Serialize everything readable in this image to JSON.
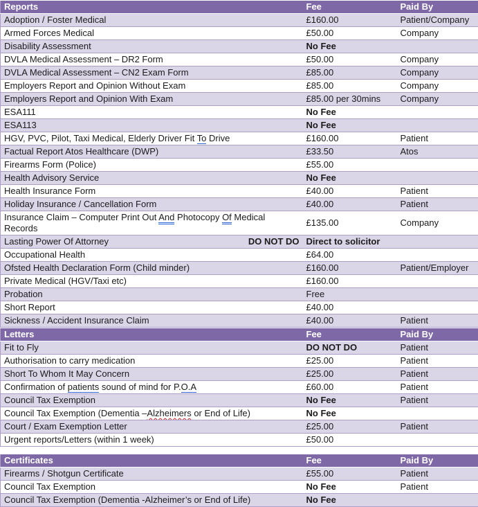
{
  "colors": {
    "header_bg": "#7e68a6",
    "header_text": "#ffffff",
    "band_row_bg": "#dbd5e8",
    "plain_row_bg": "#ffffff",
    "row_border": "#ac9dc9",
    "body_text": "#1b1b1b",
    "grammar_underline": "#2e62d9",
    "spelling_underline": "#cc2222"
  },
  "tables": [
    {
      "id": "reports",
      "title": "Reports",
      "fee_header": "Fee",
      "paid_by_header": "Paid By",
      "rows": [
        {
          "service": "Adoption / Foster Medical",
          "fee": "£160.00",
          "paid_by": "Patient/Company"
        },
        {
          "service": "Armed Forces Medical",
          "fee": "£50.00",
          "paid_by": "Company"
        },
        {
          "service": "Disability Assessment",
          "fee": "No Fee",
          "fee_bold": true,
          "paid_by": ""
        },
        {
          "service": "DVLA Medical Assessment – DR2 Form",
          "fee": "£50.00",
          "paid_by": "Company"
        },
        {
          "service": "DVLA Medical Assessment – CN2 Exam Form",
          "fee": "£85.00",
          "paid_by": "Company"
        },
        {
          "service": "Employers Report and Opinion Without Exam",
          "fee": "£85.00",
          "paid_by": "Company"
        },
        {
          "service": "Employers Report and Opinion With Exam",
          "fee": "£85.00 per 30mins",
          "paid_by": "Company"
        },
        {
          "service": "ESA111",
          "fee": "No Fee",
          "fee_bold": true,
          "paid_by": ""
        },
        {
          "service": "ESA113",
          "fee": "No Fee",
          "fee_bold": true,
          "paid_by": ""
        },
        {
          "service": [
            {
              "text": "HGV, PVC, Pilot, Taxi Medical, Elderly Driver Fit "
            },
            {
              "text": "To",
              "mark": "grammar"
            },
            {
              "text": " Drive"
            }
          ],
          "fee": "£160.00",
          "paid_by": "Patient"
        },
        {
          "service": "Factual Report Atos Healthcare (DWP)",
          "fee": "£33.50",
          "paid_by": "Atos"
        },
        {
          "service": "Firearms Form (Police)",
          "fee": "£55.00",
          "paid_by": ""
        },
        {
          "service": "Health Advisory Service",
          "fee": "No Fee",
          "fee_bold": true,
          "paid_by": ""
        },
        {
          "service": "Health Insurance Form",
          "fee": "£40.00",
          "paid_by": "Patient"
        },
        {
          "service": "Holiday Insurance / Cancellation Form",
          "fee": "£40.00",
          "paid_by": "Patient"
        },
        {
          "service": [
            {
              "text": "Insurance Claim – Computer Print Out "
            },
            {
              "text": "And",
              "mark": "grammar"
            },
            {
              "text": " Photocopy "
            },
            {
              "text": "Of",
              "mark": "grammar"
            },
            {
              "text": " Medical Records"
            }
          ],
          "fee": "£135.00",
          "paid_by": "Company"
        },
        {
          "service": "Lasting Power Of Attorney",
          "note": "DO NOT DO",
          "fee": "Direct to solicitor",
          "fee_bold": true,
          "paid_by": ""
        },
        {
          "service": "Occupational Health",
          "fee": "£64.00",
          "paid_by": ""
        },
        {
          "service": "Ofsted Health Declaration Form (Child minder)",
          "fee": "£160.00",
          "paid_by": "Patient/Employer"
        },
        {
          "service": "Private Medical (HGV/Taxi etc)",
          "fee": "£160.00",
          "paid_by": ""
        },
        {
          "service": "Probation",
          "fee": "Free",
          "paid_by": ""
        },
        {
          "service": "Short Report",
          "fee": "£40.00",
          "paid_by": ""
        },
        {
          "service": "Sickness / Accident Insurance Claim",
          "fee": "£40.00",
          "paid_by": "Patient"
        }
      ]
    },
    {
      "id": "letters",
      "title": "Letters",
      "fee_header": "Fee",
      "paid_by_header": "Paid By",
      "rows": [
        {
          "service": "Fit to Fly",
          "fee": "DO NOT DO",
          "fee_bold": true,
          "paid_by": "Patient"
        },
        {
          "service": "Authorisation to carry medication",
          "fee": "£25.00",
          "paid_by": "Patient"
        },
        {
          "service": "Short To Whom It May Concern",
          "fee": "£25.00",
          "paid_by": "Patient"
        },
        {
          "service": [
            {
              "text": "Confirmation of "
            },
            {
              "text": "patients",
              "mark": "grammar"
            },
            {
              "text": " sound of mind for P."
            },
            {
              "text": "O.A",
              "mark": "grammar"
            }
          ],
          "fee": "£60.00",
          "paid_by": "Patient"
        },
        {
          "service": "Council Tax Exemption",
          "fee": "No Fee",
          "fee_bold": true,
          "paid_by": "Patient"
        },
        {
          "service": [
            {
              "text": "Council Tax Exemption (Dementia –"
            },
            {
              "text": "Alzheimers",
              "mark": "spell"
            },
            {
              "text": " or End of Life)"
            }
          ],
          "fee": "No Fee",
          "fee_bold": true,
          "paid_by": ""
        },
        {
          "service": "Court / Exam Exemption Letter",
          "fee": "£25.00",
          "paid_by": "Patient"
        },
        {
          "service": "Urgent reports/Letters (within 1 week)",
          "fee": "£50.00",
          "paid_by": ""
        }
      ]
    },
    {
      "id": "certificates",
      "title": "Certificates",
      "fee_header": "Fee",
      "paid_by_header": "Paid By",
      "rows": [
        {
          "service": "Firearms / Shotgun Certificate",
          "fee": "£55.00",
          "paid_by": "Patient"
        },
        {
          "service": "Council Tax Exemption",
          "fee": "No Fee",
          "fee_bold": true,
          "paid_by": "Patient"
        },
        {
          "service": "Council Tax Exemption (Dementia -Alzheimer’s or End of Life)",
          "fee": "No Fee",
          "fee_bold": true,
          "paid_by": ""
        }
      ]
    }
  ]
}
